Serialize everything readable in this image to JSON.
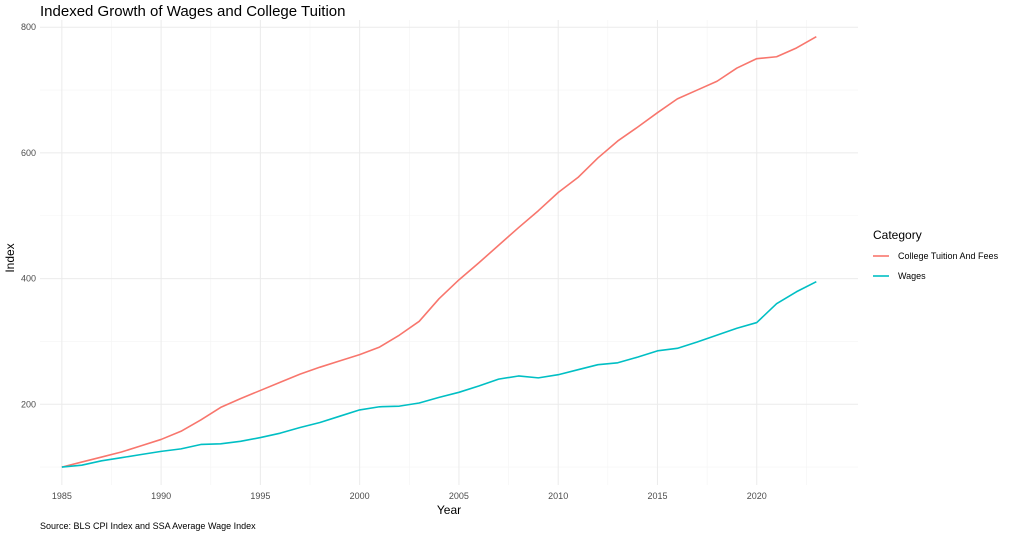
{
  "chart_data": {
    "type": "line",
    "title": "Indexed Growth of Wages and College Tuition",
    "xlabel": "Year",
    "ylabel": "Index",
    "caption": "Source: BLS CPI Index and SSA Average Wage Index",
    "legend_title": "Category",
    "legend_position": "right",
    "grid": true,
    "xlim": [
      1983.9,
      2025.1
    ],
    "ylim": [
      71.5,
      811.5
    ],
    "x_ticks": [
      1985,
      1990,
      1995,
      2000,
      2005,
      2010,
      2015,
      2020
    ],
    "y_ticks": [
      200,
      400,
      600,
      800
    ],
    "x": [
      1985,
      1986,
      1987,
      1988,
      1989,
      1990,
      1991,
      1992,
      1993,
      1994,
      1995,
      1996,
      1997,
      1998,
      1999,
      2000,
      2001,
      2002,
      2003,
      2004,
      2005,
      2006,
      2007,
      2008,
      2009,
      2010,
      2011,
      2012,
      2013,
      2014,
      2015,
      2016,
      2017,
      2018,
      2019,
      2020,
      2021,
      2022,
      2023
    ],
    "series": [
      {
        "name": "College Tuition And Fees",
        "color": "#F8766D",
        "values": [
          100,
          108,
          116,
          124,
          134,
          144,
          157,
          175,
          195,
          209,
          222,
          235,
          248,
          259,
          269,
          279,
          291,
          310,
          332,
          368,
          398,
          425,
          453,
          481,
          508,
          537,
          561,
          592,
          619,
          641,
          664,
          686,
          700,
          714,
          735,
          750,
          753,
          767,
          785
        ]
      },
      {
        "name": "Wages",
        "color": "#00BFC4",
        "values": [
          100,
          103,
          110,
          115,
          120,
          125,
          129,
          136,
          137,
          141,
          147,
          154,
          163,
          171,
          181,
          191,
          196,
          197,
          202,
          211,
          219,
          229,
          240,
          245,
          242,
          247,
          255,
          263,
          266,
          275,
          285,
          289,
          299,
          310,
          321,
          330,
          360,
          379,
          395
        ]
      }
    ]
  }
}
